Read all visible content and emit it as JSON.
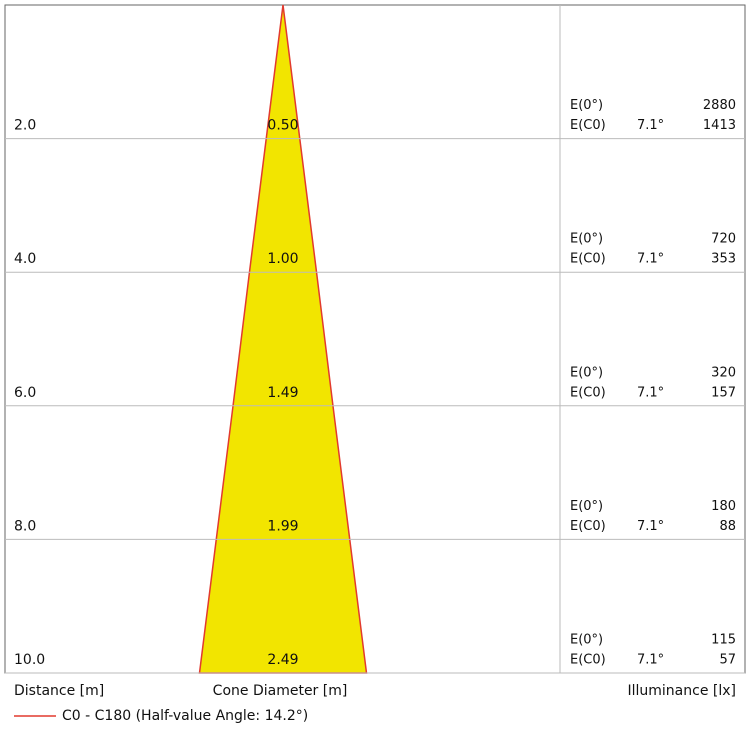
{
  "chart_data": {
    "type": "cone",
    "distance_axis_label": "Distance [m]",
    "diameter_axis_label": "Cone Diameter [m]",
    "illuminance_axis_label": "Illuminance [lx]",
    "legend": "C0 - C180 (Half-value Angle: 14.2°)",
    "color": "#e23a2e",
    "fill": "#f2e500",
    "distances": [
      2,
      4,
      6,
      8,
      10
    ],
    "distance_labels": [
      "2.0",
      "4.0",
      "6.0",
      "8.0",
      "10.0"
    ],
    "diameters": [
      0.5,
      1,
      1.49,
      1.99,
      2.49
    ],
    "diameter_labels": [
      "0.50",
      "1.00",
      "1.49",
      "1.99",
      "2.49"
    ],
    "e0_label": "E(0°)",
    "ec0_label": "E(C0)",
    "angle_label": "7.1°",
    "e0": [
      2880,
      720,
      320,
      180,
      115
    ],
    "ec0": [
      1413,
      353,
      157,
      88,
      57
    ]
  }
}
